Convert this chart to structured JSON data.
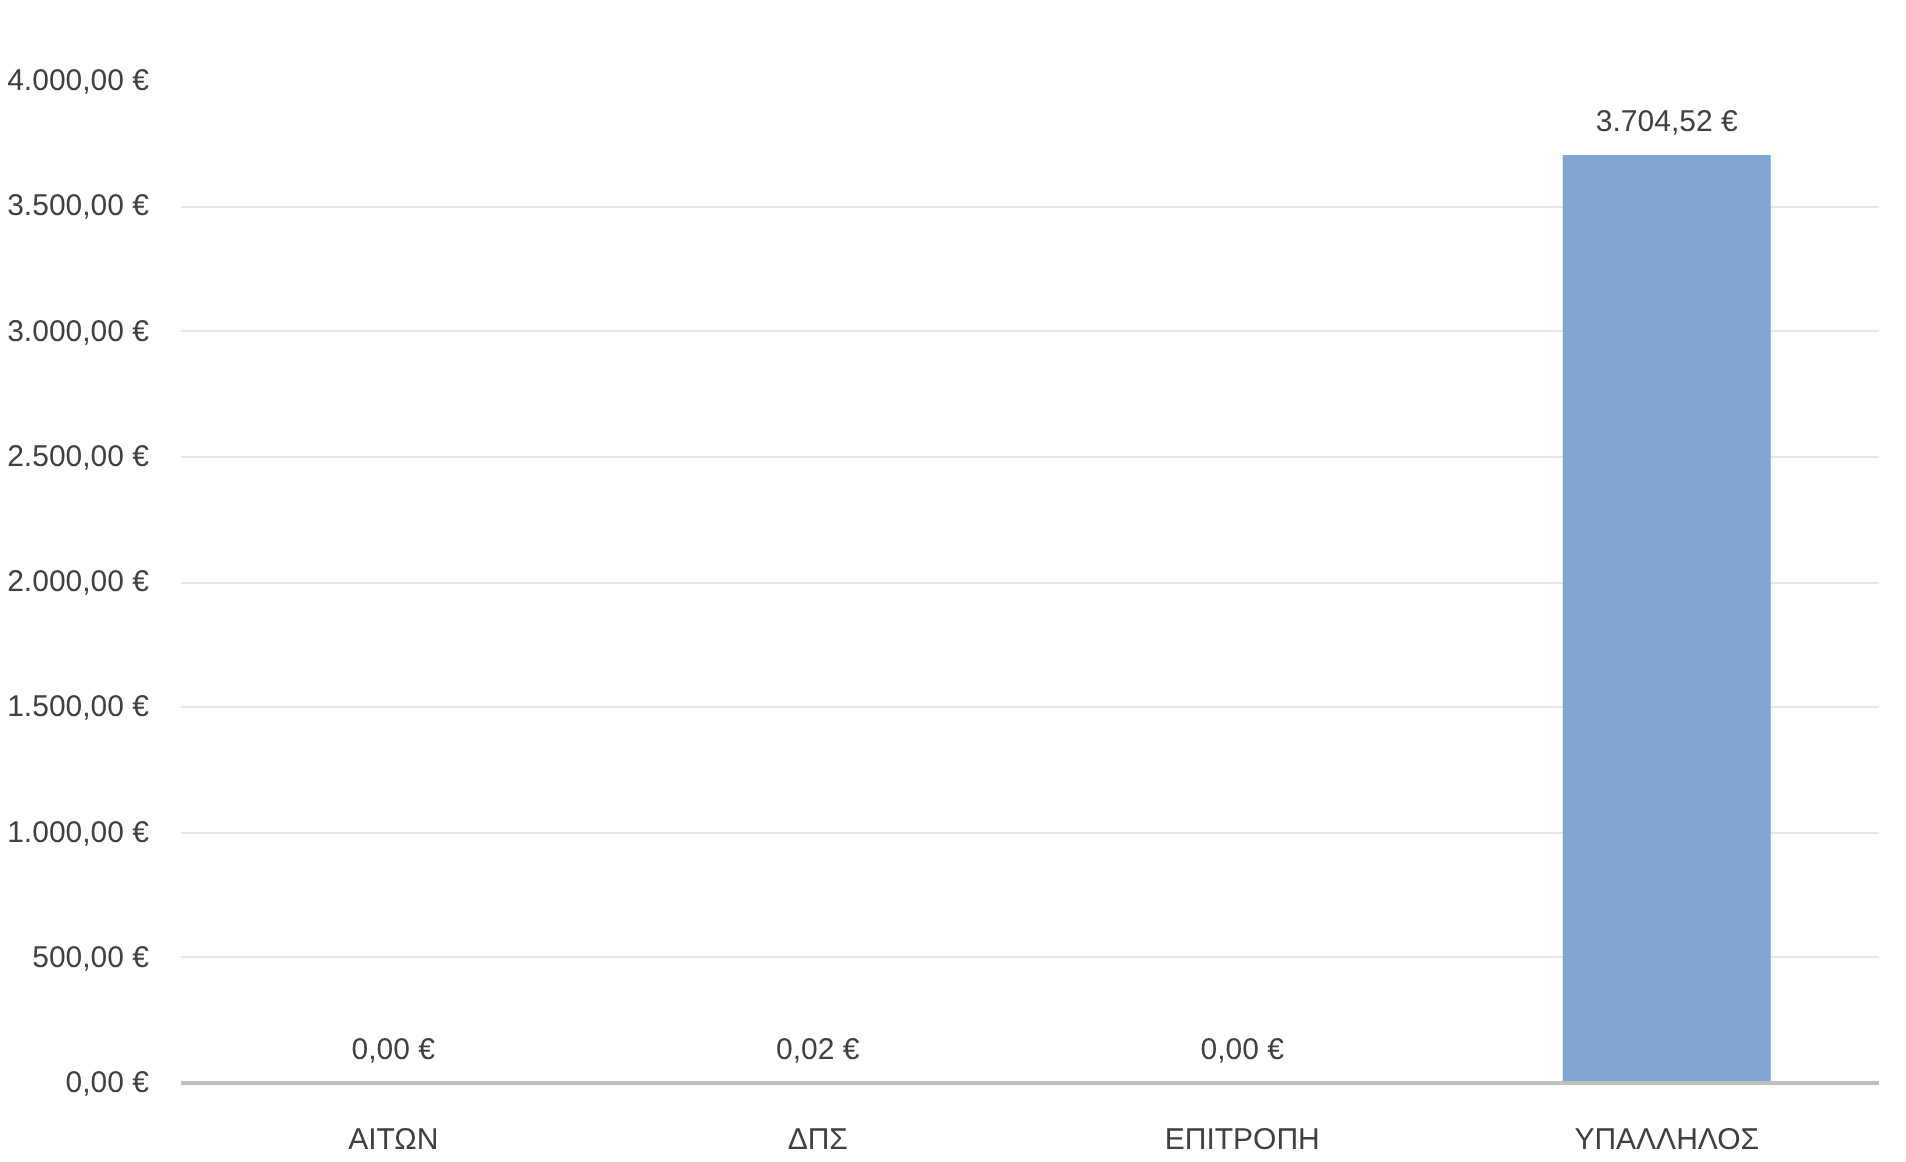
{
  "chart_data": {
    "type": "bar",
    "categories": [
      "ΑΙΤΩΝ",
      "ΔΠΣ",
      "ΕΠΙΤΡΟΠΗ",
      "ΥΠΑΛΛΗΛΟΣ"
    ],
    "values": [
      0,
      0.02,
      0,
      3704.52
    ],
    "value_labels": [
      "0,00 €",
      "0,02 €",
      "0,00 €",
      "3.704,52 €"
    ],
    "color": "#7fa6d0",
    "ylim": [
      0,
      4000
    ],
    "yticks": [
      {
        "value": 0,
        "label": "0,00 €"
      },
      {
        "value": 500,
        "label": "500,00 €"
      },
      {
        "value": 1000,
        "label": "1.000,00 €"
      },
      {
        "value": 1500,
        "label": "1.500,00 €"
      },
      {
        "value": 2000,
        "label": "2.000,00 €"
      },
      {
        "value": 2500,
        "label": "2.500,00 €"
      },
      {
        "value": 3000,
        "label": "3.000,00 €"
      },
      {
        "value": 3500,
        "label": "3.500,00 €"
      },
      {
        "value": 4000,
        "label": "4.000,00 €"
      }
    ],
    "grid": "y"
  }
}
